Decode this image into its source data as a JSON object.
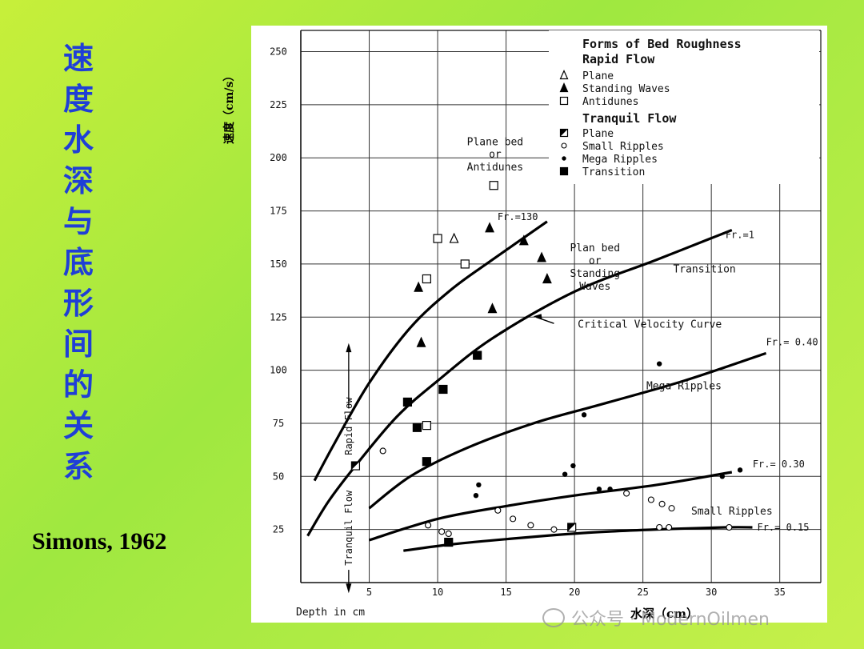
{
  "slide": {
    "vertical_title_chars": [
      "速",
      "度",
      "水",
      "深",
      "与",
      "底",
      "形",
      "间",
      "的",
      "关",
      "系"
    ],
    "citation": "Simons, 1962",
    "y_label_cn": "速度（cm/s）",
    "x_label_cn": "水深（cm）",
    "watermark": "公众号 · ModernOilmen",
    "title_color": "#1f3fd6"
  },
  "chart_data": {
    "type": "scatter",
    "xlabel": "Depth in cm",
    "ylabel": "速度（cm/s）",
    "xlim": [
      0,
      38
    ],
    "ylim": [
      0,
      260
    ],
    "x_ticks": [
      5,
      10,
      15,
      20,
      25,
      30,
      35
    ],
    "y_ticks": [
      25,
      50,
      75,
      100,
      125,
      150,
      175,
      200,
      225,
      250
    ],
    "grid": true,
    "legend": {
      "title": "Forms of Bed Roughness",
      "groups": [
        {
          "heading": "Rapid Flow",
          "entries": [
            {
              "marker": "open-triangle",
              "label": "Plane"
            },
            {
              "marker": "filled-triangle",
              "label": "Standing Waves"
            },
            {
              "marker": "open-square",
              "label": "Antidunes"
            }
          ]
        },
        {
          "heading": "Tranquil Flow",
          "entries": [
            {
              "marker": "half-square",
              "label": "Plane"
            },
            {
              "marker": "open-circle",
              "label": "Small Ripples"
            },
            {
              "marker": "filled-circle",
              "label": "Mega Ripples"
            },
            {
              "marker": "filled-square",
              "label": "Transition"
            }
          ]
        }
      ]
    },
    "curves": [
      {
        "label": "Fr.=130",
        "points": [
          [
            1,
            48
          ],
          [
            2.5,
            66
          ],
          [
            5,
            94
          ],
          [
            8,
            120
          ],
          [
            11,
            138
          ],
          [
            14,
            152
          ],
          [
            18,
            170
          ]
        ]
      },
      {
        "label": "Fr.=1",
        "points": [
          [
            0.5,
            22
          ],
          [
            2,
            38
          ],
          [
            4,
            55
          ],
          [
            7,
            78
          ],
          [
            10,
            95
          ],
          [
            14,
            115
          ],
          [
            20,
            137
          ],
          [
            26,
            152
          ],
          [
            31.5,
            166
          ]
        ]
      },
      {
        "label": "Fr.= 0.40",
        "points": [
          [
            5,
            35
          ],
          [
            8,
            50
          ],
          [
            12,
            63
          ],
          [
            17,
            75
          ],
          [
            22,
            84
          ],
          [
            28,
            95
          ],
          [
            34,
            108
          ]
        ]
      },
      {
        "label": "Fr.= 0.30",
        "points": [
          [
            5,
            20
          ],
          [
            10,
            30
          ],
          [
            15,
            36
          ],
          [
            20,
            41
          ],
          [
            26,
            46
          ],
          [
            31.5,
            52
          ]
        ]
      },
      {
        "label": "Fr.= 0.15",
        "points": [
          [
            7.5,
            15
          ],
          [
            11,
            18
          ],
          [
            16,
            21
          ],
          [
            21,
            23.5
          ],
          [
            26,
            25
          ],
          [
            31,
            26
          ],
          [
            33,
            26
          ]
        ]
      }
    ],
    "series": [
      {
        "name": "Plane (Rapid Flow)",
        "marker": "open-triangle",
        "points": [
          [
            11.2,
            162
          ]
        ]
      },
      {
        "name": "Standing Waves",
        "marker": "filled-triangle",
        "points": [
          [
            8.6,
            139
          ],
          [
            8.8,
            113
          ],
          [
            13.8,
            167
          ],
          [
            14,
            129
          ],
          [
            16.3,
            161
          ],
          [
            17.6,
            153
          ],
          [
            18,
            143
          ]
        ]
      },
      {
        "name": "Antidunes",
        "marker": "open-square",
        "points": [
          [
            14.1,
            187
          ],
          [
            10,
            162
          ],
          [
            9.2,
            143
          ],
          [
            12,
            150
          ],
          [
            9.2,
            74
          ]
        ]
      },
      {
        "name": "Plane (Tranquil Flow)",
        "marker": "half-square",
        "points": [
          [
            19.8,
            26
          ],
          [
            4,
            55
          ]
        ]
      },
      {
        "name": "Small Ripples",
        "marker": "open-circle",
        "points": [
          [
            6,
            62
          ],
          [
            9.3,
            27
          ],
          [
            10.3,
            24
          ],
          [
            10.8,
            23
          ],
          [
            14.4,
            34
          ],
          [
            15.5,
            30
          ],
          [
            16.8,
            27
          ],
          [
            18.5,
            25
          ],
          [
            23.8,
            42
          ],
          [
            25.6,
            39
          ],
          [
            26.4,
            37
          ],
          [
            27.1,
            35
          ],
          [
            26.2,
            26
          ],
          [
            26.9,
            26
          ],
          [
            31.3,
            26
          ]
        ]
      },
      {
        "name": "Mega Ripples",
        "marker": "filled-circle",
        "points": [
          [
            26.2,
            103
          ],
          [
            20.7,
            79
          ],
          [
            19.9,
            55
          ],
          [
            19.3,
            51
          ],
          [
            13,
            46
          ],
          [
            12.8,
            41
          ],
          [
            21.8,
            44
          ],
          [
            22.6,
            44
          ],
          [
            30.8,
            50
          ],
          [
            32.1,
            53
          ]
        ]
      },
      {
        "name": "Transition",
        "marker": "filled-square",
        "points": [
          [
            7.8,
            85
          ],
          [
            8.5,
            73
          ],
          [
            10.4,
            91
          ],
          [
            12.9,
            107
          ],
          [
            9.2,
            57
          ],
          [
            10.8,
            19
          ]
        ]
      }
    ],
    "annotations": [
      "Plane bed or Antidunes",
      "Plan bed or Standing Waves",
      "Transition",
      "Critical Velocity Curve",
      "Mega Ripples",
      "Small Ripples",
      "Rapid Flow",
      "Tranquil Flow"
    ]
  }
}
